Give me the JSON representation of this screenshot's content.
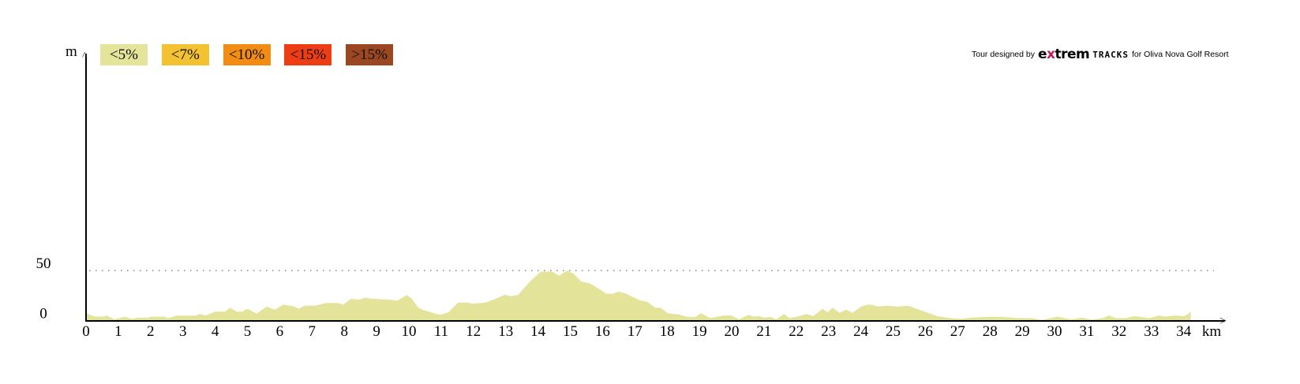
{
  "chart_data": {
    "type": "area",
    "title": "",
    "xlabel": "km",
    "ylabel": "m",
    "xlim": [
      0,
      34.22
    ],
    "ylim": [
      0,
      50
    ],
    "x_ticks": [
      0,
      1,
      2,
      3,
      4,
      5,
      6,
      7,
      8,
      9,
      10,
      11,
      12,
      13,
      14,
      15,
      16,
      17,
      18,
      19,
      20,
      21,
      22,
      23,
      24,
      25,
      26,
      27,
      28,
      29,
      30,
      31,
      32,
      33,
      34
    ],
    "y_ticks": [
      0,
      50
    ],
    "gridlines": [
      {
        "y": 50,
        "style": "dotted"
      }
    ],
    "fill_color": "#e3e39a",
    "x": [
      0,
      0.1,
      0.3,
      0.5,
      0.64,
      0.88,
      1.2,
      1.41,
      1.65,
      1.94,
      2.02,
      2.39,
      2.55,
      2.8,
      3.4,
      3.53,
      3.7,
      4.0,
      4.3,
      4.47,
      4.67,
      4.83,
      5.0,
      5.28,
      5.6,
      5.85,
      6.1,
      6.42,
      6.59,
      6.79,
      7.1,
      7.44,
      7.8,
      7.97,
      8.2,
      8.46,
      8.66,
      8.83,
      9.4,
      9.64,
      9.93,
      10.09,
      10.29,
      10.46,
      10.62,
      10.82,
      10.99,
      11.23,
      11.52,
      11.8,
      12.0,
      12.37,
      12.62,
      12.98,
      13.15,
      13.39,
      13.72,
      14.08,
      14.45,
      14.65,
      14.9,
      15.1,
      15.35,
      15.59,
      15.8,
      16.12,
      16.32,
      16.49,
      16.73,
      17.14,
      17.38,
      17.63,
      17.79,
      18.03,
      18.36,
      18.6,
      18.85,
      19.05,
      19.34,
      19.75,
      19.99,
      20.23,
      20.52,
      20.68,
      20.85,
      21.01,
      21.21,
      21.38,
      21.62,
      21.79,
      22.03,
      22.32,
      22.52,
      22.81,
      22.97,
      23.13,
      23.34,
      23.54,
      23.74,
      24.03,
      24.27,
      24.56,
      24.8,
      25.13,
      25.46,
      25.7,
      26.03,
      26.35,
      26.76,
      27.09,
      27.41,
      28.06,
      28.55,
      28.88,
      29.29,
      29.61,
      30.1,
      30.51,
      30.83,
      31.16,
      31.49,
      31.69,
      31.89,
      32.22,
      32.46,
      32.95,
      33.24,
      33.44,
      33.73,
      34.01,
      34.14,
      34.22
    ],
    "y": [
      8.4,
      6,
      4,
      4,
      5,
      1.3,
      4,
      2,
      3,
      3,
      4,
      4,
      2.6,
      5,
      5,
      6.8,
      5,
      9,
      9,
      13,
      9,
      9,
      12,
      7,
      14,
      11,
      16,
      14.4,
      12,
      15,
      15,
      17.6,
      17.6,
      16,
      21.8,
      21,
      23,
      22,
      21,
      20,
      25.5,
      22,
      13,
      10.5,
      9,
      7,
      6,
      8.4,
      18,
      18,
      17,
      18,
      21,
      26,
      24.4,
      26,
      38,
      49,
      49,
      45,
      50,
      47,
      39,
      37.5,
      33.6,
      27,
      27,
      29,
      27,
      20.5,
      19,
      13,
      13,
      7.3,
      6.3,
      4,
      3.4,
      7.3,
      2.6,
      5.2,
      5.2,
      1.3,
      5.8,
      4,
      4.7,
      3,
      3.7,
      1.3,
      6.8,
      2.6,
      4,
      6.6,
      4.5,
      11.8,
      8.4,
      12.9,
      7.9,
      11,
      7.9,
      14.4,
      16.3,
      14,
      15,
      14,
      15,
      12.3,
      8.4,
      4.7,
      2.6,
      1.8,
      3,
      4,
      3.4,
      2.6,
      2.6,
      0.8,
      4,
      1.3,
      3,
      1,
      2.6,
      5.2,
      2.6,
      2.6,
      4.5,
      2.6,
      5.2,
      4,
      5.2,
      4.5,
      6.6,
      9.2
    ]
  },
  "legend": [
    {
      "label": "<5%",
      "color": "#e4e49a"
    },
    {
      "label": "<7%",
      "color": "#f3c232"
    },
    {
      "label": "<10%",
      "color": "#f28c12"
    },
    {
      "label": "<15%",
      "color": "#ee3d14"
    },
    {
      "label": ">15%",
      "color": "#9b4722"
    }
  ],
  "axis": {
    "y_unit": "m",
    "x_unit": "km",
    "y_arrow": "^",
    "x_arrow": ">"
  },
  "logo": {
    "prefix": "Tour designed by",
    "brand_a": "e",
    "brand_x": "x",
    "brand_b": "trem",
    "brand_c": "TRACKS",
    "suffix": "for Oliva Nova Golf Resort"
  }
}
